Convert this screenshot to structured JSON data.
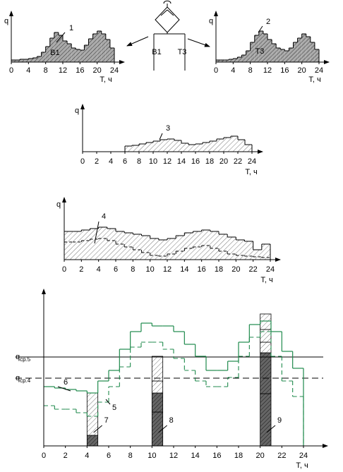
{
  "valve": {
    "left": "B1",
    "right": "T3"
  },
  "top_left": {
    "y_label": "q",
    "x_label": "T, ч",
    "callout": "1",
    "series_label": "B1",
    "xlim": [
      0,
      24
    ],
    "ylim": [
      0,
      66
    ],
    "xticks": [
      0,
      4,
      8,
      12,
      16,
      20,
      24
    ],
    "values": [
      3,
      3,
      4,
      4,
      5,
      6,
      8,
      14,
      22,
      34,
      42,
      38,
      30,
      26,
      20,
      18,
      17,
      24,
      33,
      40,
      44,
      40,
      32,
      20
    ]
  },
  "top_right": {
    "y_label": "q",
    "x_label": "T, ч",
    "callout": "2",
    "series_label": "T3",
    "xlim": [
      0,
      24
    ],
    "ylim": [
      0,
      66
    ],
    "xticks": [
      0,
      4,
      8,
      12,
      16,
      20,
      24
    ],
    "values": [
      3,
      3,
      3,
      4,
      5,
      7,
      10,
      16,
      28,
      38,
      44,
      40,
      32,
      26,
      20,
      18,
      16,
      20,
      28,
      34,
      40,
      36,
      28,
      18
    ]
  },
  "middle": {
    "y_label": "q",
    "x_label": "T, ч",
    "callout": "3",
    "xlim": [
      0,
      24
    ],
    "ylim": [
      0,
      63
    ],
    "xticks": [
      0,
      2,
      4,
      6,
      8,
      10,
      12,
      14,
      16,
      18,
      20,
      22,
      24
    ],
    "values": [
      0,
      0,
      0,
      0,
      0,
      0,
      8,
      9,
      11,
      13,
      15,
      17,
      18,
      16,
      12,
      10,
      11,
      13,
      15,
      18,
      20,
      22,
      17,
      10
    ]
  },
  "lower": {
    "y_label": "q",
    "x_label": "T, ч",
    "callout": "4",
    "xlim": [
      0,
      24
    ],
    "ylim": [
      0,
      83
    ],
    "xticks": [
      0,
      2,
      4,
      6,
      8,
      10,
      12,
      14,
      16,
      18,
      20,
      22,
      24
    ],
    "values": [
      40,
      40,
      42,
      44,
      46,
      44,
      40,
      38,
      36,
      34,
      30,
      28,
      30,
      34,
      38,
      40,
      42,
      40,
      36,
      32,
      28,
      26,
      14,
      22
    ],
    "dashed": [
      25,
      25,
      27,
      29,
      30,
      27,
      22,
      18,
      14,
      10,
      6,
      5,
      8,
      12,
      16,
      18,
      20,
      16,
      12,
      8,
      6,
      5,
      4,
      3
    ]
  },
  "bottom": {
    "x_label": "T, ч",
    "xlim": [
      0,
      24
    ],
    "ylim": [
      0,
      212
    ],
    "xticks": [
      0,
      2,
      4,
      6,
      8,
      10,
      12,
      14,
      16,
      18,
      20,
      22,
      24
    ],
    "green": [
      84,
      82,
      80,
      78,
      75,
      92,
      107,
      137,
      162,
      174,
      170,
      170,
      162,
      144,
      127,
      107,
      107,
      120,
      147,
      172,
      177,
      162,
      134,
      110
    ],
    "dashed": [
      57,
      52,
      52,
      47,
      42,
      62,
      84,
      112,
      140,
      147,
      147,
      137,
      124,
      107,
      92,
      84,
      84,
      97,
      127,
      154,
      162,
      127,
      92,
      70
    ],
    "green_label": "5",
    "dashed_label": "6",
    "ref_lines": [
      {
        "main": "q",
        "sub": "ср.5",
        "value": 126
      },
      {
        "main": "q",
        "sub": "ср.4",
        "value": 96
      }
    ],
    "bars": [
      {
        "label": "7",
        "x": 4,
        "segments": [
          15,
          60
        ],
        "patterns": [
          "dark",
          "sparse"
        ]
      },
      {
        "label": "8",
        "x": 10,
        "segments": [
          48,
          27,
          17,
          35
        ],
        "patterns": [
          "dark",
          "dark",
          "sparse",
          "sparse"
        ]
      },
      {
        "label": "9",
        "x": 20,
        "segments": [
          74,
          58,
          15,
          18,
          22
        ],
        "patterns": [
          "dark",
          "dark",
          "sparse",
          "sparse",
          "sparse"
        ]
      }
    ]
  }
}
